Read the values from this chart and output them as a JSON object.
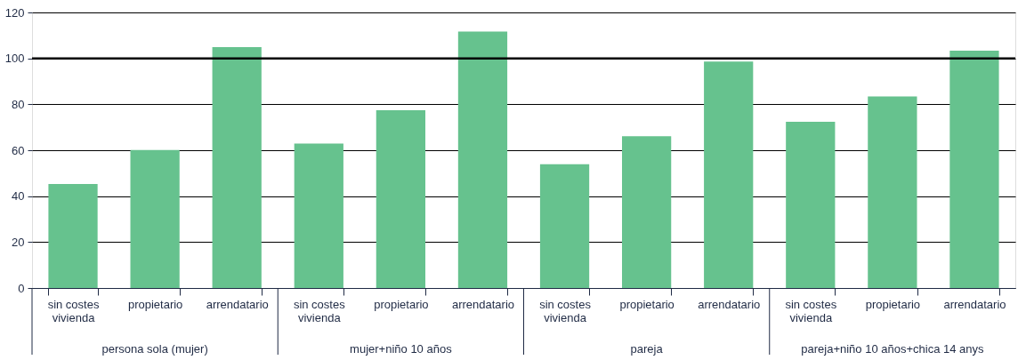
{
  "chart_data": {
    "type": "bar",
    "categories": [
      "sin costes\nvivienda",
      "propietario",
      "arrendatario",
      "sin costes\nvivienda",
      "propietario",
      "arrendatario",
      "sin costes\nvivienda",
      "propietario",
      "arrendatario",
      "sin costes\nvivienda",
      "propietario",
      "arrendatario"
    ],
    "values": [
      45.3,
      60.1,
      104.9,
      62.9,
      77.4,
      111.7,
      53.9,
      66.1,
      98.6,
      72.4,
      83.4,
      103.4
    ],
    "color": "#66c28e",
    "ylim": [
      0,
      120
    ],
    "yticks": [
      0,
      20,
      40,
      60,
      80,
      100,
      120
    ],
    "grid": "y",
    "ref_lines": [
      {
        "axis": "y",
        "value": 100,
        "label": null,
        "color": "#000000"
      }
    ],
    "annotations": [
      "persona sola (mujer)",
      "mujer+niño 10 años",
      "pareja",
      "pareja+niño 10 años+chica 14 anys"
    ]
  }
}
